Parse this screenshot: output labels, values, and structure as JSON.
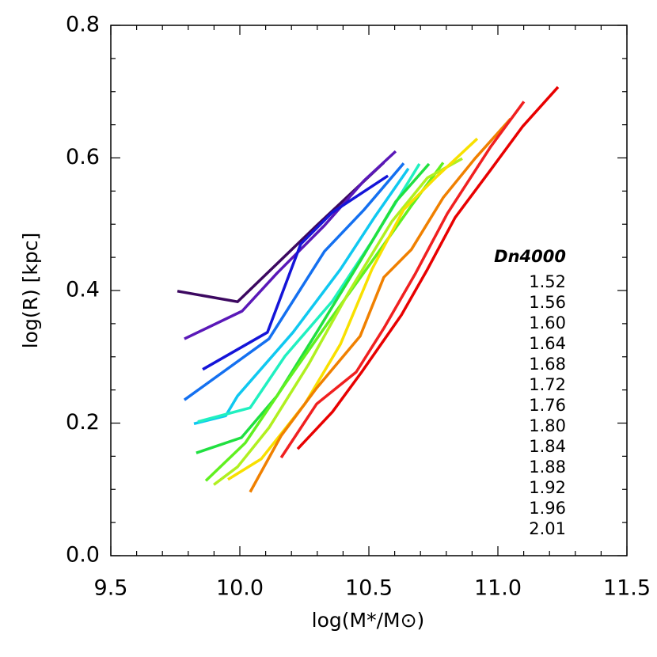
{
  "chart_data": {
    "type": "line",
    "xlabel": "log(M*/M⊙)",
    "ylabel": "log(R) [kpc]",
    "legend_title": "Dn4000",
    "legend_position": "right",
    "xlim": [
      9.5,
      11.5
    ],
    "xticks": [
      9.5,
      {
        "value": 10.0,
        "label": "10.0"
      },
      10.5,
      {
        "value": 11.0,
        "label": "11.0"
      },
      11.5
    ],
    "ylim": [
      0,
      0.8
    ],
    "yticks": [
      {
        "value": 0,
        "label": "0.0"
      },
      0.2,
      0.4,
      0.6,
      0.8
    ],
    "series": [
      {
        "name": "1.52",
        "color": "#3c0860",
        "x": [
          9.758,
          9.991,
          10.298,
          10.558
        ],
        "values": [
          0.399,
          0.383,
          0.498,
          0.593
        ]
      },
      {
        "name": "1.56",
        "color": "#5a18b8",
        "x": [
          9.785,
          10.009,
          10.144,
          10.328,
          10.482,
          10.604
        ],
        "values": [
          0.327,
          0.369,
          0.426,
          0.498,
          0.566,
          0.61
        ]
      },
      {
        "name": "1.60",
        "color": "#1414d8",
        "x": [
          9.856,
          10.107,
          10.236,
          10.359,
          10.574
        ],
        "values": [
          0.281,
          0.337,
          0.47,
          0.518,
          0.573
        ]
      },
      {
        "name": "1.64",
        "color": "#1470f0",
        "x": [
          9.785,
          10.113,
          10.328,
          10.482,
          10.635
        ],
        "values": [
          0.235,
          0.327,
          0.459,
          0.522,
          0.592
        ]
      },
      {
        "name": "1.68",
        "color": "#10c8f0",
        "x": [
          9.822,
          9.945,
          9.991,
          10.206,
          10.39,
          10.521,
          10.653
        ],
        "values": [
          0.199,
          0.211,
          0.241,
          0.337,
          0.432,
          0.51,
          0.584
        ]
      },
      {
        "name": "1.72",
        "color": "#20f0c0",
        "x": [
          9.837,
          10.04,
          10.175,
          10.359,
          10.512,
          10.696
        ],
        "values": [
          0.202,
          0.223,
          0.301,
          0.384,
          0.474,
          0.591
        ]
      },
      {
        "name": "1.76",
        "color": "#20e040",
        "x": [
          9.831,
          10.006,
          10.144,
          10.298,
          10.466,
          10.604,
          10.733
        ],
        "values": [
          0.155,
          0.178,
          0.241,
          0.337,
          0.444,
          0.534,
          0.591
        ]
      },
      {
        "name": "1.80",
        "color": "#60f020",
        "x": [
          9.868,
          10.021,
          10.175,
          10.359,
          10.512,
          10.665,
          10.788
        ],
        "values": [
          0.113,
          0.17,
          0.259,
          0.361,
          0.444,
          0.528,
          0.593
        ]
      },
      {
        "name": "1.84",
        "color": "#b0f020",
        "x": [
          9.899,
          9.991,
          10.113,
          10.267,
          10.42,
          10.589,
          10.727,
          10.862
        ],
        "values": [
          0.107,
          0.134,
          0.193,
          0.289,
          0.396,
          0.504,
          0.57,
          0.599
        ]
      },
      {
        "name": "1.88",
        "color": "#f8e000",
        "x": [
          9.954,
          10.083,
          10.252,
          10.39,
          10.512,
          10.635,
          10.758,
          10.92
        ],
        "values": [
          0.115,
          0.146,
          0.229,
          0.319,
          0.432,
          0.522,
          0.57,
          0.629
        ]
      },
      {
        "name": "1.92",
        "color": "#f08000",
        "x": [
          10.04,
          10.16,
          10.298,
          10.466,
          10.558,
          10.665,
          10.788,
          10.911,
          11.049
        ],
        "values": [
          0.096,
          0.181,
          0.253,
          0.331,
          0.42,
          0.462,
          0.54,
          0.599,
          0.659
        ]
      },
      {
        "name": "1.96",
        "color": "#f02020",
        "x": [
          10.16,
          10.298,
          10.451,
          10.558,
          10.681,
          10.804,
          10.972,
          11.101
        ],
        "values": [
          0.148,
          0.229,
          0.277,
          0.343,
          0.426,
          0.516,
          0.617,
          0.685
        ]
      },
      {
        "name": "2.01",
        "color": "#e80000",
        "x": [
          10.224,
          10.359,
          10.472,
          10.626,
          10.727,
          10.834,
          10.972,
          11.095,
          11.233
        ],
        "values": [
          0.161,
          0.217,
          0.277,
          0.363,
          0.432,
          0.51,
          0.582,
          0.647,
          0.707
        ]
      }
    ]
  }
}
